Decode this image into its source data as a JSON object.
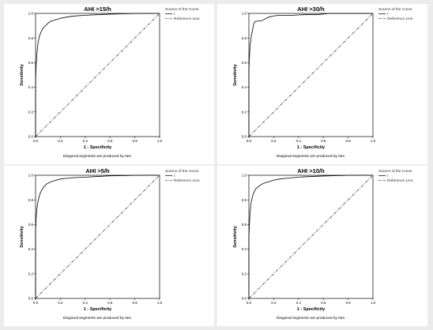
{
  "chart_data": [
    {
      "type": "line",
      "title": "AHI >15/h",
      "xlabel": "1 - Specificity",
      "ylabel": "Sensitivity",
      "xlim": [
        0,
        1
      ],
      "ylim": [
        0,
        1
      ],
      "xticks": [
        "0.0",
        "0.2",
        "0.4",
        "0.6",
        "0.8",
        "1.0"
      ],
      "yticks": [
        "0.0",
        "0.2",
        "0.4",
        "0.6",
        "0.8",
        "1.0"
      ],
      "note": "Diagonal segments are produced by ties.",
      "legend_title": "Source of the Curve",
      "legend": [
        "t",
        "Reference Line"
      ],
      "legend_position": "top-right",
      "series": [
        {
          "name": "t",
          "x": [
            0,
            0,
            0.005,
            0.01,
            0.015,
            0.02,
            0.03,
            0.04,
            0.05,
            0.06,
            0.08,
            0.1,
            0.12,
            0.15,
            0.2,
            0.25,
            0.3,
            0.4,
            0.5,
            0.6,
            0.7,
            0.8,
            0.9,
            1.0
          ],
          "y": [
            0,
            0.45,
            0.58,
            0.66,
            0.72,
            0.76,
            0.81,
            0.84,
            0.86,
            0.88,
            0.9,
            0.92,
            0.935,
            0.945,
            0.96,
            0.97,
            0.978,
            0.985,
            0.99,
            0.994,
            0.997,
            0.999,
            1.0,
            1.0
          ]
        },
        {
          "name": "Reference Line",
          "x": [
            0,
            1
          ],
          "y": [
            0,
            1
          ]
        }
      ]
    },
    {
      "type": "line",
      "title": "AHI >30/h",
      "xlabel": "1 - Specificity",
      "ylabel": "Sensitivity",
      "xlim": [
        0,
        1
      ],
      "ylim": [
        0,
        1
      ],
      "xticks": [
        "0.0",
        "0.2",
        "0.4",
        "0.6",
        "0.8",
        "1.0"
      ],
      "yticks": [
        "0.0",
        "0.2",
        "0.4",
        "0.6",
        "0.8",
        "1.0"
      ],
      "note": "Diagonal segments are produced by ties.",
      "legend_title": "Source of the Curve",
      "legend": [
        "t",
        "Reference Line"
      ],
      "legend_position": "top-right",
      "series": [
        {
          "name": "t",
          "x": [
            0,
            0,
            0.005,
            0.01,
            0.015,
            0.02,
            0.03,
            0.04,
            0.05,
            0.06,
            0.08,
            0.1,
            0.12,
            0.14,
            0.16,
            0.2,
            0.25,
            0.35,
            0.45,
            0.55,
            0.65,
            0.8,
            1.0
          ],
          "y": [
            0,
            0.55,
            0.66,
            0.74,
            0.78,
            0.82,
            0.87,
            0.92,
            0.935,
            0.935,
            0.94,
            0.94,
            0.95,
            0.96,
            0.97,
            0.98,
            0.985,
            0.985,
            0.99,
            0.99,
            1.0,
            1.0,
            1.0
          ]
        },
        {
          "name": "Reference Line",
          "x": [
            0,
            1
          ],
          "y": [
            0,
            1
          ]
        }
      ]
    },
    {
      "type": "line",
      "title": "AHI >5/h",
      "xlabel": "1 - Specificity",
      "ylabel": "Sensitivity",
      "xlim": [
        0,
        1
      ],
      "ylim": [
        0,
        1
      ],
      "xticks": [
        "0.0",
        "0.2",
        "0.4",
        "0.6",
        "0.8",
        "1.0"
      ],
      "yticks": [
        "0.0",
        "0.2",
        "0.4",
        "0.6",
        "0.8",
        "1.0"
      ],
      "note": "Diagonal segments are produced by ties.",
      "legend_title": "Source of the Curve",
      "legend": [
        "t",
        "Reference Line"
      ],
      "legend_position": "top-right",
      "series": [
        {
          "name": "t",
          "x": [
            0,
            0,
            0.005,
            0.01,
            0.015,
            0.02,
            0.03,
            0.04,
            0.05,
            0.07,
            0.09,
            0.12,
            0.15,
            0.2,
            0.25,
            0.3,
            0.4,
            0.5,
            0.6,
            0.7,
            0.8,
            0.9,
            1.0
          ],
          "y": [
            0,
            0.55,
            0.66,
            0.72,
            0.76,
            0.79,
            0.83,
            0.86,
            0.88,
            0.91,
            0.93,
            0.945,
            0.955,
            0.97,
            0.975,
            0.98,
            0.985,
            0.99,
            0.995,
            0.997,
            0.999,
            1.0,
            1.0
          ]
        },
        {
          "name": "Reference Line",
          "x": [
            0,
            1
          ],
          "y": [
            0,
            1
          ]
        }
      ]
    },
    {
      "type": "line",
      "title": "AHI >10/h",
      "xlabel": "1 - Specificity",
      "ylabel": "Sensitivity",
      "xlim": [
        0,
        1
      ],
      "ylim": [
        0,
        1
      ],
      "xticks": [
        "0.0",
        "0.2",
        "0.4",
        "0.6",
        "0.8",
        "1.0"
      ],
      "yticks": [
        "0.0",
        "0.2",
        "0.4",
        "0.6",
        "0.8",
        "1.0"
      ],
      "note": "Diagonal segments are produced by ties.",
      "legend_title": "Source of the Curve",
      "legend": [
        "t",
        "Reference Line"
      ],
      "legend_position": "top-right",
      "series": [
        {
          "name": "t",
          "x": [
            0,
            0,
            0.005,
            0.01,
            0.015,
            0.02,
            0.03,
            0.04,
            0.05,
            0.06,
            0.08,
            0.1,
            0.12,
            0.15,
            0.2,
            0.25,
            0.3,
            0.4,
            0.5,
            0.6,
            0.7,
            0.8,
            0.9,
            1.0
          ],
          "y": [
            0,
            0.5,
            0.62,
            0.7,
            0.75,
            0.79,
            0.83,
            0.86,
            0.88,
            0.895,
            0.91,
            0.925,
            0.935,
            0.945,
            0.96,
            0.97,
            0.975,
            0.985,
            0.99,
            0.994,
            0.997,
            0.999,
            1.0,
            1.0
          ]
        },
        {
          "name": "Reference Line",
          "x": [
            0,
            1
          ],
          "y": [
            0,
            1
          ]
        }
      ]
    }
  ]
}
